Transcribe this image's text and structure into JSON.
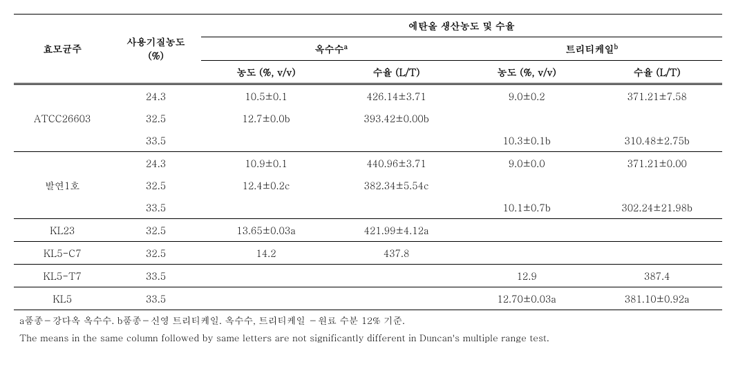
{
  "table": {
    "columns": {
      "strain": "효모균주",
      "substrate_conc": "사용기질농도",
      "substrate_conc_unit": "(%)",
      "main_header": "에탄올 생산농도 및 수율",
      "group1": "옥수수",
      "group1_sup": "a",
      "group2": "트리티케일",
      "group2_sup": "b",
      "sub_conc": "농도 (%, v/v)",
      "sub_yield": "수율 (L/T)"
    },
    "strains": [
      {
        "name": "ATCC26603",
        "rows": [
          {
            "conc": "24.3",
            "corn_conc": "10.5±0.1",
            "corn_yield": "426.14±3.71",
            "trit_conc": "9.0±0.2",
            "trit_yield": "371.21±7.58"
          },
          {
            "conc": "32.5",
            "corn_conc": "12.7±0.0b",
            "corn_yield": "393.42±0.00b",
            "trit_conc": "",
            "trit_yield": ""
          },
          {
            "conc": "33.5",
            "corn_conc": "",
            "corn_yield": "",
            "trit_conc": "10.3±0.1b",
            "trit_yield": "310.48±2.75b"
          }
        ]
      },
      {
        "name": "발연1호",
        "rows": [
          {
            "conc": "24.3",
            "corn_conc": "10.9±0.1",
            "corn_yield": "440.96±3.71",
            "trit_conc": "9.0±0.0",
            "trit_yield": "371.21±0.00"
          },
          {
            "conc": "32.5",
            "corn_conc": "12.4±0.2c",
            "corn_yield": "382.34±5.54c",
            "trit_conc": "",
            "trit_yield": ""
          },
          {
            "conc": "33.5",
            "corn_conc": "",
            "corn_yield": "",
            "trit_conc": "10.1±0.7b",
            "trit_yield": "302.24±21.98b"
          }
        ]
      },
      {
        "name": "KL23",
        "rows": [
          {
            "conc": "32.5",
            "corn_conc": "13.65±0.03a",
            "corn_yield": "421.99±4.12a",
            "trit_conc": "",
            "trit_yield": ""
          }
        ]
      },
      {
        "name": "KL5-C7",
        "rows": [
          {
            "conc": "32.5",
            "corn_conc": "14.2",
            "corn_yield": "437.8",
            "trit_conc": "",
            "trit_yield": ""
          }
        ]
      },
      {
        "name": "KL5-T7",
        "rows": [
          {
            "conc": "33.5",
            "corn_conc": "",
            "corn_yield": "",
            "trit_conc": "12.9",
            "trit_yield": "387.4"
          }
        ]
      },
      {
        "name": "KL5",
        "rows": [
          {
            "conc": "33.5",
            "corn_conc": "",
            "corn_yield": "",
            "trit_conc": "12.70±0.03a",
            "trit_yield": "381.10±0.92a"
          }
        ]
      }
    ],
    "footnotes": [
      "a품종－강다옥 옥수수. b품종－신영 트리티케일. 옥수수, 트리티케일 －원료 수분 12% 기준.",
      "The means in the same column followed by same letters are not significantly different in Duncan's multiple range test."
    ]
  },
  "style": {
    "font_family": "Batang, serif",
    "font_size": 14,
    "bg": "#ffffff",
    "fg": "#000000",
    "border_color": "#000000"
  }
}
